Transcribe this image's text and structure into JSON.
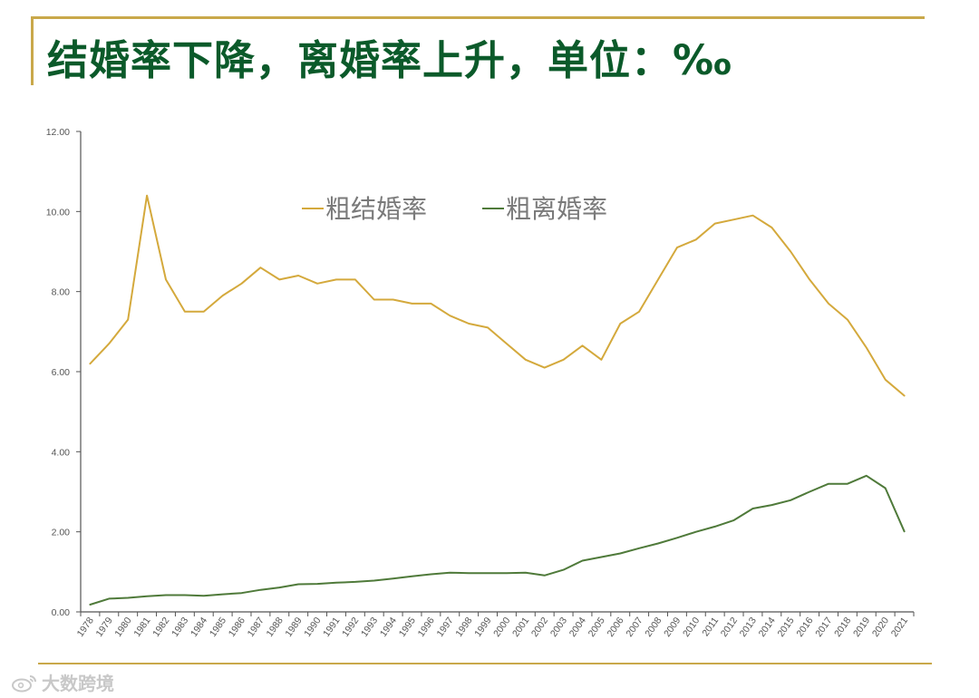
{
  "header": {
    "title": "结婚率下降，离婚率上升，单位：‰"
  },
  "watermark": {
    "text": "大数跨境"
  },
  "colors": {
    "marriage": "#d4a93c",
    "divorce": "#4f7a3a",
    "title": "#0b5a2a",
    "accent": "#c9a84a"
  },
  "chart_data": {
    "type": "line",
    "x": [
      "1978",
      "1979",
      "1980",
      "1981",
      "1982",
      "1983",
      "1984",
      "1985",
      "1986",
      "1987",
      "1988",
      "1989",
      "1990",
      "1991",
      "1992",
      "1993",
      "1994",
      "1995",
      "1996",
      "1997",
      "1998",
      "1999",
      "2000",
      "2001",
      "2002",
      "2003",
      "2004",
      "2005",
      "2006",
      "2007",
      "2008",
      "2009",
      "2010",
      "2011",
      "2012",
      "2013",
      "2014",
      "2015",
      "2016",
      "2017",
      "2018",
      "2019",
      "2020",
      "2021"
    ],
    "series": [
      {
        "name": "粗结婚率",
        "color": "#d4a93c",
        "values": [
          6.2,
          6.7,
          7.3,
          10.4,
          8.3,
          7.5,
          7.5,
          7.9,
          8.2,
          8.6,
          8.3,
          8.4,
          8.2,
          8.3,
          8.3,
          7.8,
          7.8,
          7.7,
          7.7,
          7.4,
          7.2,
          7.1,
          6.7,
          6.3,
          6.1,
          6.3,
          6.65,
          6.3,
          7.2,
          7.5,
          8.3,
          9.1,
          9.3,
          9.7,
          9.8,
          9.9,
          9.6,
          9.0,
          8.3,
          7.7,
          7.3,
          6.6,
          5.8,
          5.4
        ]
      },
      {
        "name": "粗离婚率",
        "color": "#4f7a3a",
        "values": [
          0.18,
          0.33,
          0.35,
          0.39,
          0.42,
          0.42,
          0.4,
          0.44,
          0.47,
          0.55,
          0.61,
          0.69,
          0.7,
          0.73,
          0.75,
          0.78,
          0.83,
          0.89,
          0.94,
          0.98,
          0.97,
          0.97,
          0.97,
          0.98,
          0.91,
          1.05,
          1.28,
          1.37,
          1.46,
          1.59,
          1.71,
          1.85,
          2.0,
          2.13,
          2.29,
          2.58,
          2.67,
          2.79,
          3.0,
          3.2,
          3.2,
          3.4,
          3.09,
          2.01
        ]
      }
    ],
    "yticks": [
      "0.00",
      "2.00",
      "4.00",
      "6.00",
      "8.00",
      "10.00",
      "12.00"
    ],
    "ylim": [
      0,
      12
    ],
    "grid": false,
    "legend": "top-center"
  }
}
